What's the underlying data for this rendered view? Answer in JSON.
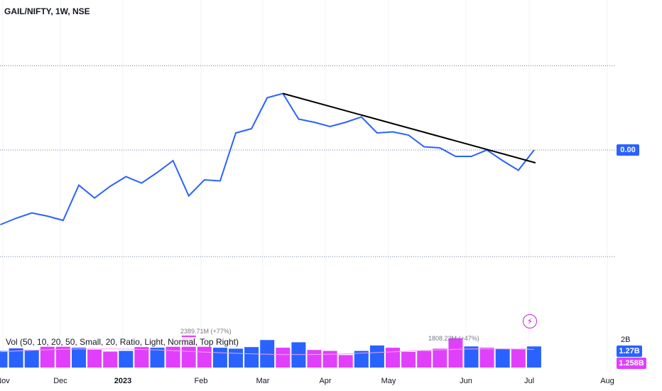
{
  "header": {
    "title": "GAIL/NIFTY, 1W, NSE"
  },
  "price_scale": {
    "last_value": "0.00"
  },
  "volume_legend": {
    "text": "Vol (50, 10, 20, 50, Small, 20, Ratio, Light, Normal, Top Right)"
  },
  "volume_scale": {
    "top_label": "2B",
    "current_blue": "1.27B",
    "current_pink": "1.258B"
  },
  "volume_notes": {
    "peak_right": "1808.22M (+47%)",
    "peak_left": "2389.71M (+77%)"
  },
  "time_axis": {
    "labels": [
      {
        "text": "Nov",
        "bold": false
      },
      {
        "text": "Dec",
        "bold": false
      },
      {
        "text": "2023",
        "bold": true
      },
      {
        "text": "Feb",
        "bold": false
      },
      {
        "text": "Mar",
        "bold": false
      },
      {
        "text": "Apr",
        "bold": false
      },
      {
        "text": "May",
        "bold": false
      },
      {
        "text": "Jun",
        "bold": false
      },
      {
        "text": "Jul",
        "bold": false
      },
      {
        "text": "Aug",
        "bold": false
      }
    ]
  },
  "colors": {
    "line": "#2962ff",
    "trendline": "#000000",
    "volume_up": "#2962ff",
    "volume_down": "#e040fb",
    "grid": "#d1d4dc",
    "dotted": "#6b7a99"
  },
  "chart_data": {
    "type": "line",
    "series_line": {
      "name": "",
      "x_week": [
        0,
        1,
        2,
        3,
        4,
        5,
        6,
        7,
        8,
        9,
        10,
        11,
        12,
        13,
        14,
        15,
        16,
        17,
        18,
        19,
        20,
        21,
        22,
        23,
        24,
        25,
        26,
        27,
        28,
        29,
        30,
        31,
        32,
        33,
        34
      ],
      "y": [
        -0.7,
        -0.64,
        -0.59,
        -0.62,
        -0.66,
        -0.33,
        -0.45,
        -0.34,
        -0.25,
        -0.31,
        -0.21,
        -0.1,
        -0.43,
        -0.28,
        -0.29,
        0.16,
        0.2,
        0.49,
        0.53,
        0.29,
        0.26,
        0.22,
        0.26,
        0.31,
        0.16,
        0.17,
        0.14,
        0.03,
        0.02,
        -0.06,
        -0.06,
        0.0,
        -0.1,
        -0.19,
        0.0
      ]
    },
    "trendline": {
      "from": {
        "x_week": 18,
        "y": 0.53
      },
      "to": {
        "x_week": 34,
        "y": -0.12
      }
    },
    "volume": {
      "relative": [
        0.52,
        0.6,
        0.55,
        0.69,
        0.69,
        0.62,
        0.56,
        0.5,
        0.52,
        0.64,
        0.62,
        0.69,
        1.0,
        0.69,
        0.62,
        0.59,
        0.64,
        0.86,
        0.62,
        0.79,
        0.55,
        0.52,
        0.39,
        0.52,
        0.69,
        0.62,
        0.49,
        0.52,
        0.59,
        0.92,
        0.66,
        0.62,
        0.59,
        0.59,
        0.66
      ],
      "color": [
        "blue",
        "blue",
        "blue",
        "pink",
        "pink",
        "blue",
        "pink",
        "pink",
        "blue",
        "pink",
        "blue",
        "pink",
        "pink",
        "pink",
        "blue",
        "blue",
        "blue",
        "blue",
        "pink",
        "blue",
        "pink",
        "pink",
        "pink",
        "blue",
        "blue",
        "pink",
        "pink",
        "pink",
        "pink",
        "pink",
        "blue",
        "pink",
        "blue",
        "pink",
        "blue"
      ]
    },
    "grid": false,
    "legend": "none"
  }
}
